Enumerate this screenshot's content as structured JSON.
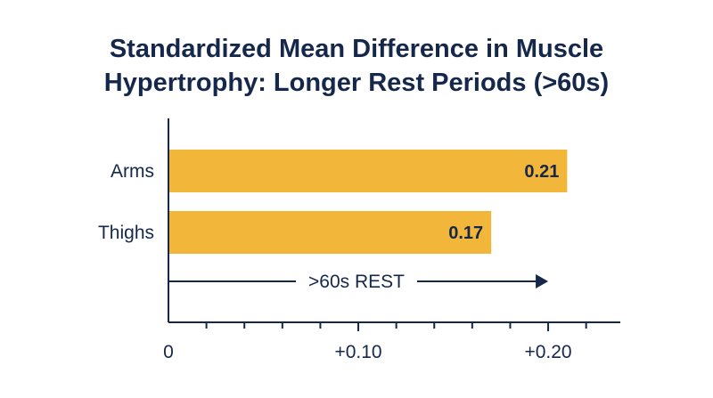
{
  "chart_data": {
    "type": "bar",
    "orientation": "horizontal",
    "title_lines": [
      "Standardized Mean Difference in Muscle",
      "Hypertrophy: Longer Rest Periods (>60s)"
    ],
    "categories": [
      "Arms",
      "Thighs"
    ],
    "values": [
      0.21,
      0.17
    ],
    "value_labels": [
      "0.21",
      "0.17"
    ],
    "xlim": [
      0,
      0.238
    ],
    "x_ticks": [
      {
        "value": 0,
        "label": "0"
      },
      {
        "value": 0.1,
        "label": "+0.10"
      },
      {
        "value": 0.2,
        "label": "+0.20"
      }
    ],
    "minor_tick_step": 0.02,
    "annotation": {
      "label": ">60s REST",
      "from": 0,
      "to": 0.2
    },
    "bar_color": "#f2b63b",
    "axis_color": "#15284b",
    "grid": false,
    "legend": "none"
  }
}
